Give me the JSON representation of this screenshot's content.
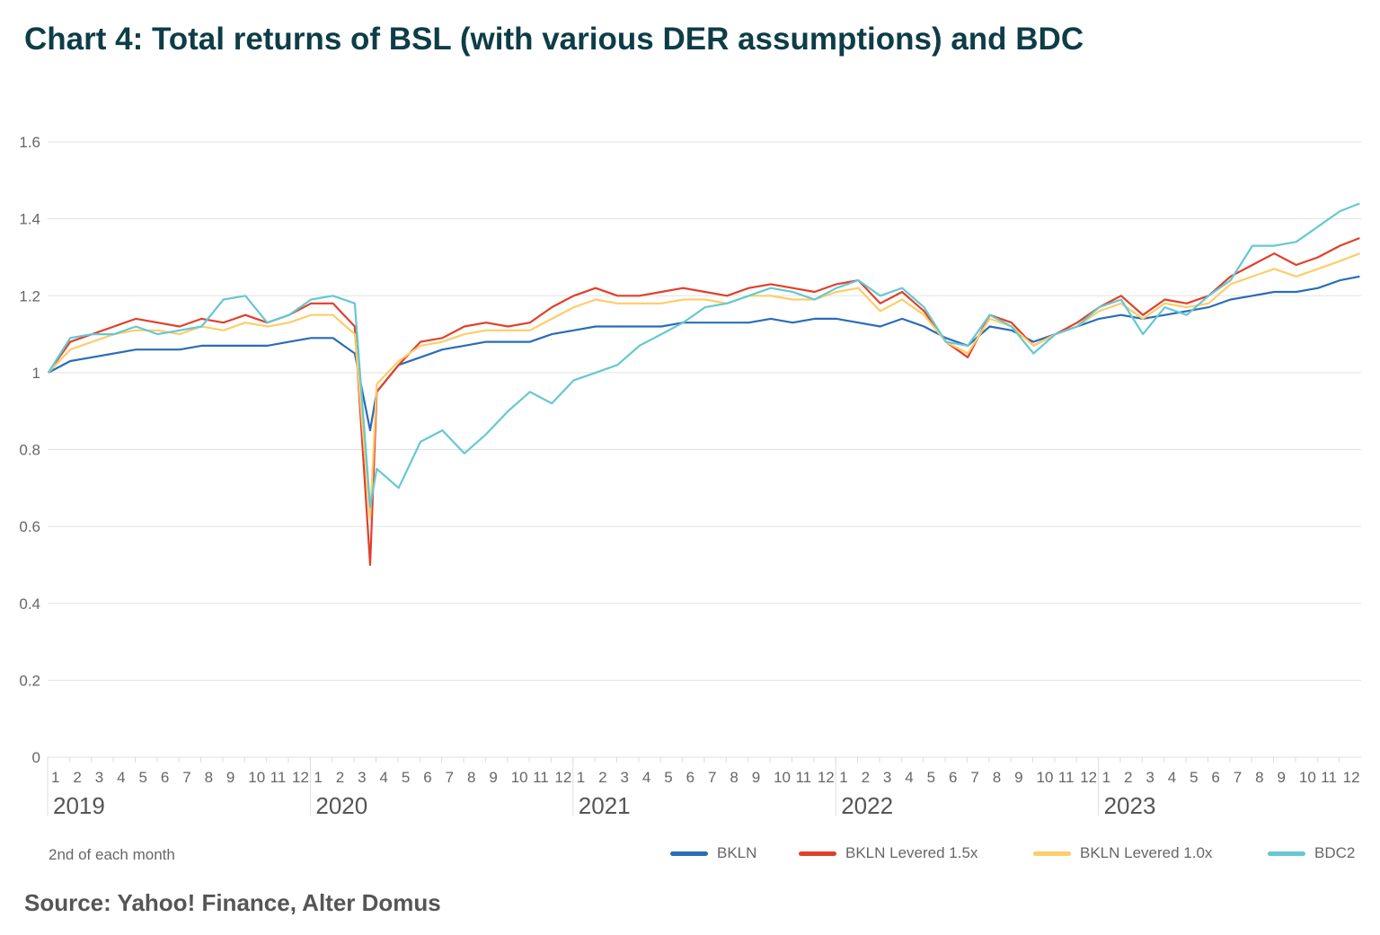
{
  "title": "Chart 4: Total returns of BSL (with various DER assumptions) and BDC",
  "note": "2nd of each month",
  "source": "Source: Yahoo! Finance, Alter Domus",
  "chart_data": {
    "type": "line",
    "title": "Chart 4: Total returns of BSL (with various DER assumptions) and BDC",
    "xlabel": "2nd of each month",
    "ylabel": "",
    "ylim": [
      0,
      1.6
    ],
    "yticks": [
      "0",
      "0.2",
      "0.4",
      "0.6",
      "0.8",
      "1",
      "1.2",
      "1.4",
      "1.6"
    ],
    "month_ticks": [
      "1",
      "2",
      "3",
      "4",
      "5",
      "6",
      "7",
      "8",
      "9",
      "10",
      "11",
      "12"
    ],
    "years": [
      "2019",
      "2020",
      "2021",
      "2022",
      "2023"
    ],
    "grid": true,
    "legend_position": "bottom-right",
    "x": [
      "2019-01-02",
      "2019-02-02",
      "2019-03-02",
      "2019-04-02",
      "2019-05-02",
      "2019-06-02",
      "2019-07-02",
      "2019-08-02",
      "2019-09-02",
      "2019-10-02",
      "2019-11-02",
      "2019-12-02",
      "2020-01-02",
      "2020-02-02",
      "2020-03-02",
      "2020-03-23",
      "2020-04-02",
      "2020-05-02",
      "2020-06-02",
      "2020-07-02",
      "2020-08-02",
      "2020-09-02",
      "2020-10-02",
      "2020-11-02",
      "2020-12-02",
      "2021-01-02",
      "2021-02-02",
      "2021-03-02",
      "2021-04-02",
      "2021-05-02",
      "2021-06-02",
      "2021-07-02",
      "2021-08-02",
      "2021-09-02",
      "2021-10-02",
      "2021-11-02",
      "2021-12-02",
      "2022-01-02",
      "2022-02-02",
      "2022-03-02",
      "2022-04-02",
      "2022-05-02",
      "2022-06-02",
      "2022-07-02",
      "2022-08-02",
      "2022-09-02",
      "2022-10-02",
      "2022-11-02",
      "2022-12-02",
      "2023-01-02",
      "2023-02-02",
      "2023-03-02",
      "2023-04-02",
      "2023-05-02",
      "2023-06-02",
      "2023-07-02",
      "2023-08-02",
      "2023-09-02",
      "2023-10-02",
      "2023-11-02",
      "2023-12-02",
      "2023-12-29"
    ],
    "series": [
      {
        "name": "BKLN",
        "color": "#2b6cb8",
        "values": [
          1.0,
          1.03,
          1.04,
          1.05,
          1.06,
          1.06,
          1.06,
          1.07,
          1.07,
          1.07,
          1.07,
          1.08,
          1.09,
          1.09,
          1.05,
          0.85,
          0.95,
          1.02,
          1.04,
          1.06,
          1.07,
          1.08,
          1.08,
          1.08,
          1.1,
          1.11,
          1.12,
          1.12,
          1.12,
          1.12,
          1.13,
          1.13,
          1.13,
          1.13,
          1.14,
          1.13,
          1.14,
          1.14,
          1.13,
          1.12,
          1.14,
          1.12,
          1.09,
          1.07,
          1.12,
          1.11,
          1.08,
          1.1,
          1.12,
          1.14,
          1.15,
          1.14,
          1.15,
          1.16,
          1.17,
          1.19,
          1.2,
          1.21,
          1.21,
          1.22,
          1.24,
          1.25
        ]
      },
      {
        "name": "BKLN Levered 1.5x",
        "color": "#e0402a",
        "values": [
          1.0,
          1.08,
          1.1,
          1.12,
          1.14,
          1.13,
          1.12,
          1.14,
          1.13,
          1.15,
          1.13,
          1.15,
          1.18,
          1.18,
          1.12,
          0.5,
          0.95,
          1.02,
          1.08,
          1.09,
          1.12,
          1.13,
          1.12,
          1.13,
          1.17,
          1.2,
          1.22,
          1.2,
          1.2,
          1.21,
          1.22,
          1.21,
          1.2,
          1.22,
          1.23,
          1.22,
          1.21,
          1.23,
          1.24,
          1.18,
          1.21,
          1.16,
          1.08,
          1.04,
          1.15,
          1.13,
          1.07,
          1.1,
          1.13,
          1.17,
          1.2,
          1.15,
          1.19,
          1.18,
          1.2,
          1.25,
          1.28,
          1.31,
          1.28,
          1.3,
          1.33,
          1.35
        ]
      },
      {
        "name": "BKLN Levered 1.0x",
        "color": "#fdcd6a",
        "values": [
          1.0,
          1.06,
          1.08,
          1.1,
          1.11,
          1.11,
          1.1,
          1.12,
          1.11,
          1.13,
          1.12,
          1.13,
          1.15,
          1.15,
          1.1,
          0.62,
          0.97,
          1.03,
          1.07,
          1.08,
          1.1,
          1.11,
          1.11,
          1.11,
          1.14,
          1.17,
          1.19,
          1.18,
          1.18,
          1.18,
          1.19,
          1.19,
          1.18,
          1.2,
          1.2,
          1.19,
          1.19,
          1.21,
          1.22,
          1.16,
          1.19,
          1.15,
          1.08,
          1.05,
          1.14,
          1.12,
          1.07,
          1.1,
          1.12,
          1.16,
          1.18,
          1.14,
          1.18,
          1.17,
          1.18,
          1.23,
          1.25,
          1.27,
          1.25,
          1.27,
          1.29,
          1.31
        ]
      },
      {
        "name": "BDC2",
        "color": "#66c8d2",
        "values": [
          1.0,
          1.09,
          1.1,
          1.1,
          1.12,
          1.1,
          1.11,
          1.12,
          1.19,
          1.2,
          1.13,
          1.15,
          1.19,
          1.2,
          1.18,
          0.65,
          0.75,
          0.7,
          0.82,
          0.85,
          0.79,
          0.84,
          0.9,
          0.95,
          0.92,
          0.98,
          1.0,
          1.02,
          1.07,
          1.1,
          1.13,
          1.17,
          1.18,
          1.2,
          1.22,
          1.21,
          1.19,
          1.22,
          1.24,
          1.2,
          1.22,
          1.17,
          1.08,
          1.07,
          1.15,
          1.12,
          1.05,
          1.1,
          1.12,
          1.17,
          1.19,
          1.1,
          1.17,
          1.15,
          1.2,
          1.24,
          1.33,
          1.33,
          1.34,
          1.38,
          1.42,
          1.44
        ]
      }
    ]
  }
}
